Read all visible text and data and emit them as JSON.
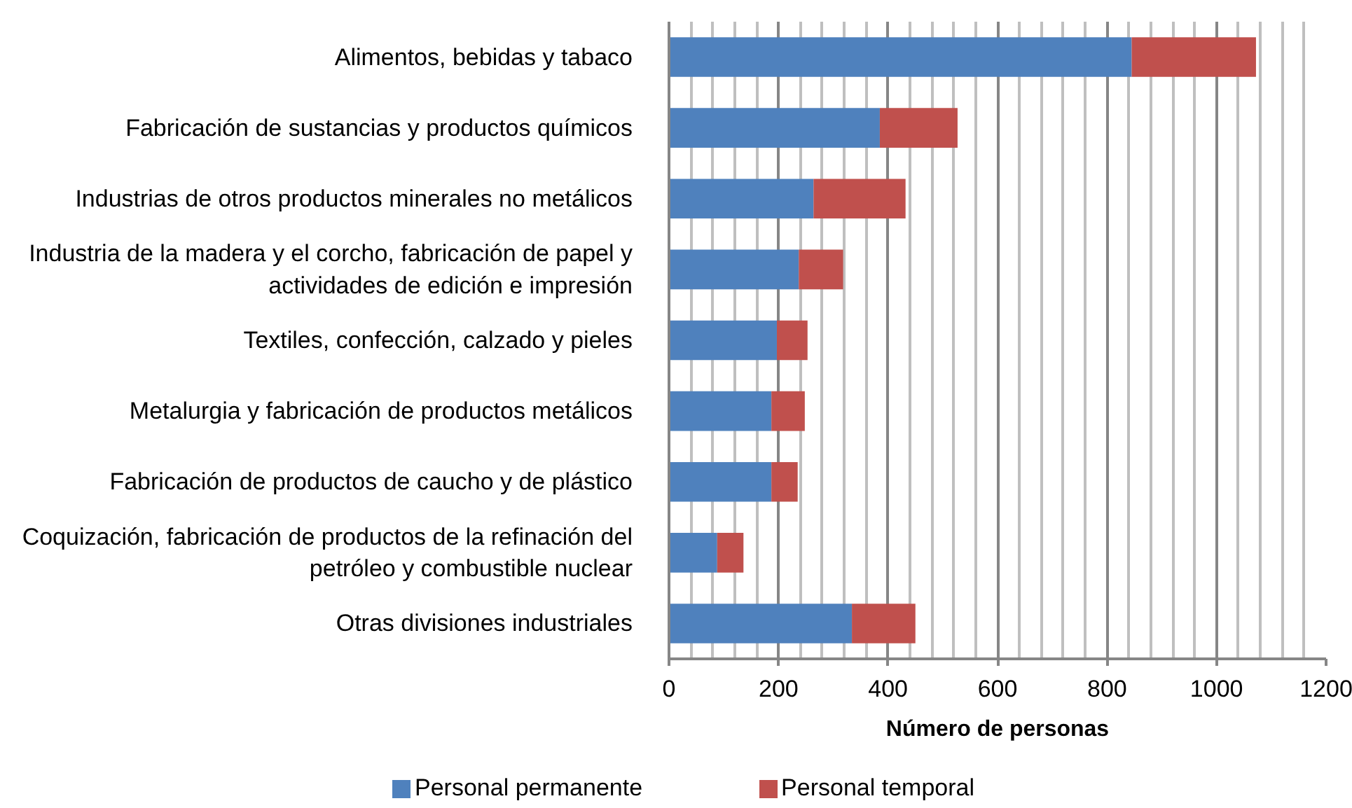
{
  "chart_data": {
    "type": "bar",
    "orientation": "horizontal",
    "stacked": true,
    "categories": [
      "Alimentos, bebidas y tabaco",
      "Fabricación de sustancias y productos químicos",
      "Industrias de otros productos minerales no metálicos",
      "Industria de la madera y el corcho, fabricación de papel y actividades de edición e impresión",
      "Textiles, confección, calzado y pieles",
      "Metalurgia y fabricación de productos metálicos",
      "Fabricación de productos de caucho y de plástico",
      "Coquización, fabricación de productos de la refinación del petróleo y combustible nuclear",
      "Otras divisiones industriales"
    ],
    "series": [
      {
        "name": "Personal permanente",
        "color": "#4f81bd",
        "values": [
          845,
          385,
          264,
          237,
          197,
          187,
          187,
          88,
          334
        ]
      },
      {
        "name": "Personal temporal",
        "color": "#c0504d",
        "values": [
          227,
          142,
          168,
          81,
          56,
          61,
          48,
          48,
          116
        ]
      }
    ],
    "xlabel": "Número de personas",
    "xlim": [
      0,
      1200
    ],
    "xticks": [
      0,
      200,
      400,
      600,
      800,
      1000,
      1200
    ],
    "grid": "x",
    "legend": "bottom"
  }
}
